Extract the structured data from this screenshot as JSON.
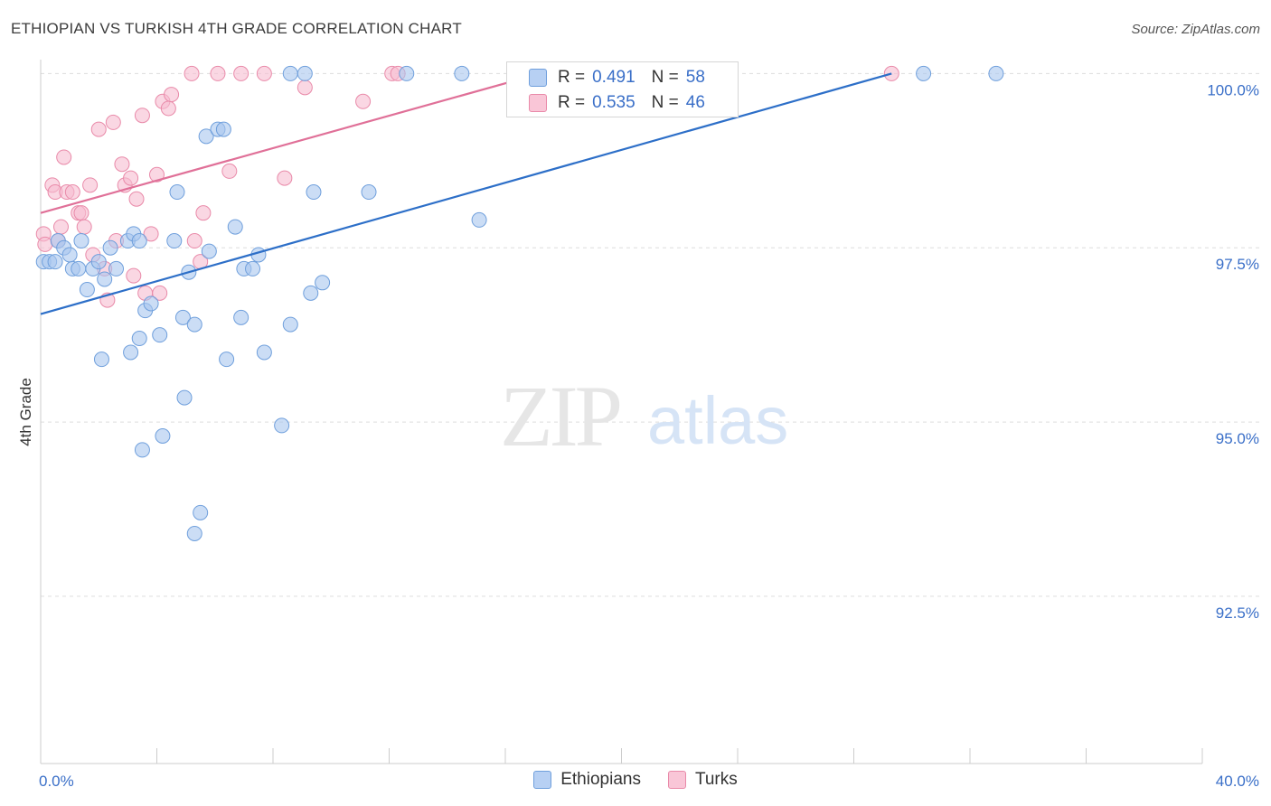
{
  "title": "ETHIOPIAN VS TURKISH 4TH GRADE CORRELATION CHART",
  "source": "Source: ZipAtlas.com",
  "watermark": {
    "zip": "ZIP",
    "atlas": "atlas"
  },
  "colors": {
    "blue_fill": "#a9c6ef",
    "blue_stroke": "#6f9fdc",
    "blue_line": "#2d6fc8",
    "pink_fill": "#f7bcd0",
    "pink_stroke": "#e98aa9",
    "pink_line": "#e07098",
    "grid": "#dddddd",
    "axis_text": "#3a6fc8"
  },
  "legend": {
    "rows": [
      {
        "r_label": "R =",
        "r_value": "0.491",
        "n_label": "N =",
        "n_value": "58"
      },
      {
        "r_label": "R =",
        "r_value": "0.535",
        "n_label": "N =",
        "n_value": "46"
      }
    ],
    "bottom": [
      "Ethiopians",
      "Turks"
    ]
  },
  "chart_data": {
    "type": "scatter",
    "title": "ETHIOPIAN VS TURKISH 4TH GRADE CORRELATION CHART",
    "xlabel": "",
    "ylabel": "4th Grade",
    "xlim": [
      0.0,
      40.0
    ],
    "ylim": [
      90.1,
      100.2
    ],
    "x_tick_labels": [
      "0.0%",
      "40.0%"
    ],
    "y_ticks": [
      92.5,
      95.0,
      97.5,
      100.0
    ],
    "y_tick_labels": [
      "92.5%",
      "95.0%",
      "97.5%",
      "100.0%"
    ],
    "series": [
      {
        "name": "Ethiopians",
        "r": 0.491,
        "n": 58,
        "trend": {
          "x": [
            0.0,
            29.3
          ],
          "y": [
            96.55,
            100.0
          ]
        },
        "points": [
          [
            0.1,
            97.3
          ],
          [
            0.3,
            97.3
          ],
          [
            0.5,
            97.3
          ],
          [
            0.6,
            97.6
          ],
          [
            0.8,
            97.5
          ],
          [
            1.0,
            97.4
          ],
          [
            1.1,
            97.2
          ],
          [
            1.3,
            97.2
          ],
          [
            1.4,
            97.6
          ],
          [
            1.6,
            96.9
          ],
          [
            1.8,
            97.2
          ],
          [
            2.0,
            97.3
          ],
          [
            2.2,
            97.05
          ],
          [
            2.4,
            97.5
          ],
          [
            2.6,
            97.2
          ],
          [
            3.0,
            97.6
          ],
          [
            3.2,
            97.7
          ],
          [
            3.4,
            97.6
          ],
          [
            2.1,
            95.9
          ],
          [
            3.1,
            96.0
          ],
          [
            3.4,
            96.2
          ],
          [
            3.5,
            94.6
          ],
          [
            3.6,
            96.6
          ],
          [
            3.8,
            96.7
          ],
          [
            4.1,
            96.25
          ],
          [
            4.2,
            94.8
          ],
          [
            4.6,
            97.6
          ],
          [
            4.7,
            98.3
          ],
          [
            4.9,
            96.5
          ],
          [
            4.95,
            95.35
          ],
          [
            5.1,
            97.15
          ],
          [
            5.3,
            96.4
          ],
          [
            5.5,
            93.7
          ],
          [
            5.3,
            93.4
          ],
          [
            5.7,
            99.1
          ],
          [
            5.8,
            97.45
          ],
          [
            6.1,
            99.2
          ],
          [
            6.3,
            99.2
          ],
          [
            6.4,
            95.9
          ],
          [
            6.7,
            97.8
          ],
          [
            6.9,
            96.5
          ],
          [
            7.0,
            97.2
          ],
          [
            7.3,
            97.2
          ],
          [
            7.5,
            97.4
          ],
          [
            7.7,
            96.0
          ],
          [
            8.3,
            94.95
          ],
          [
            8.6,
            96.4
          ],
          [
            8.6,
            100.0
          ],
          [
            9.1,
            100.0
          ],
          [
            9.3,
            96.85
          ],
          [
            9.4,
            98.3
          ],
          [
            9.7,
            97.0
          ],
          [
            11.3,
            98.3
          ],
          [
            12.6,
            100.0
          ],
          [
            14.5,
            100.0
          ],
          [
            15.1,
            97.9
          ],
          [
            30.4,
            100.0
          ],
          [
            32.9,
            100.0
          ]
        ]
      },
      {
        "name": "Turks",
        "r": 0.535,
        "n": 46,
        "trend": {
          "x": [
            0.0,
            17.2
          ],
          "y": [
            98.0,
            100.0
          ]
        },
        "points": [
          [
            0.1,
            97.7
          ],
          [
            0.15,
            97.55
          ],
          [
            0.4,
            98.4
          ],
          [
            0.5,
            98.3
          ],
          [
            0.6,
            97.6
          ],
          [
            0.7,
            97.8
          ],
          [
            0.8,
            98.8
          ],
          [
            0.9,
            98.3
          ],
          [
            1.1,
            98.3
          ],
          [
            1.3,
            98.0
          ],
          [
            1.4,
            98.0
          ],
          [
            1.5,
            97.8
          ],
          [
            1.7,
            98.4
          ],
          [
            1.8,
            97.4
          ],
          [
            2.0,
            99.2
          ],
          [
            2.2,
            97.2
          ],
          [
            2.3,
            96.75
          ],
          [
            2.5,
            99.3
          ],
          [
            2.6,
            97.6
          ],
          [
            2.8,
            98.7
          ],
          [
            2.9,
            98.4
          ],
          [
            3.1,
            98.5
          ],
          [
            3.2,
            97.1
          ],
          [
            3.3,
            98.2
          ],
          [
            3.5,
            99.4
          ],
          [
            3.6,
            96.85
          ],
          [
            3.8,
            97.7
          ],
          [
            4.0,
            98.55
          ],
          [
            4.2,
            99.6
          ],
          [
            4.1,
            96.85
          ],
          [
            4.4,
            99.5
          ],
          [
            4.5,
            99.7
          ],
          [
            5.2,
            100.0
          ],
          [
            5.3,
            97.6
          ],
          [
            5.5,
            97.3
          ],
          [
            5.6,
            98.0
          ],
          [
            6.1,
            100.0
          ],
          [
            6.5,
            98.6
          ],
          [
            6.9,
            100.0
          ],
          [
            7.7,
            100.0
          ],
          [
            8.4,
            98.5
          ],
          [
            9.1,
            99.8
          ],
          [
            11.1,
            99.6
          ],
          [
            12.1,
            100.0
          ],
          [
            12.3,
            100.0
          ],
          [
            29.3,
            100.0
          ]
        ]
      }
    ]
  }
}
